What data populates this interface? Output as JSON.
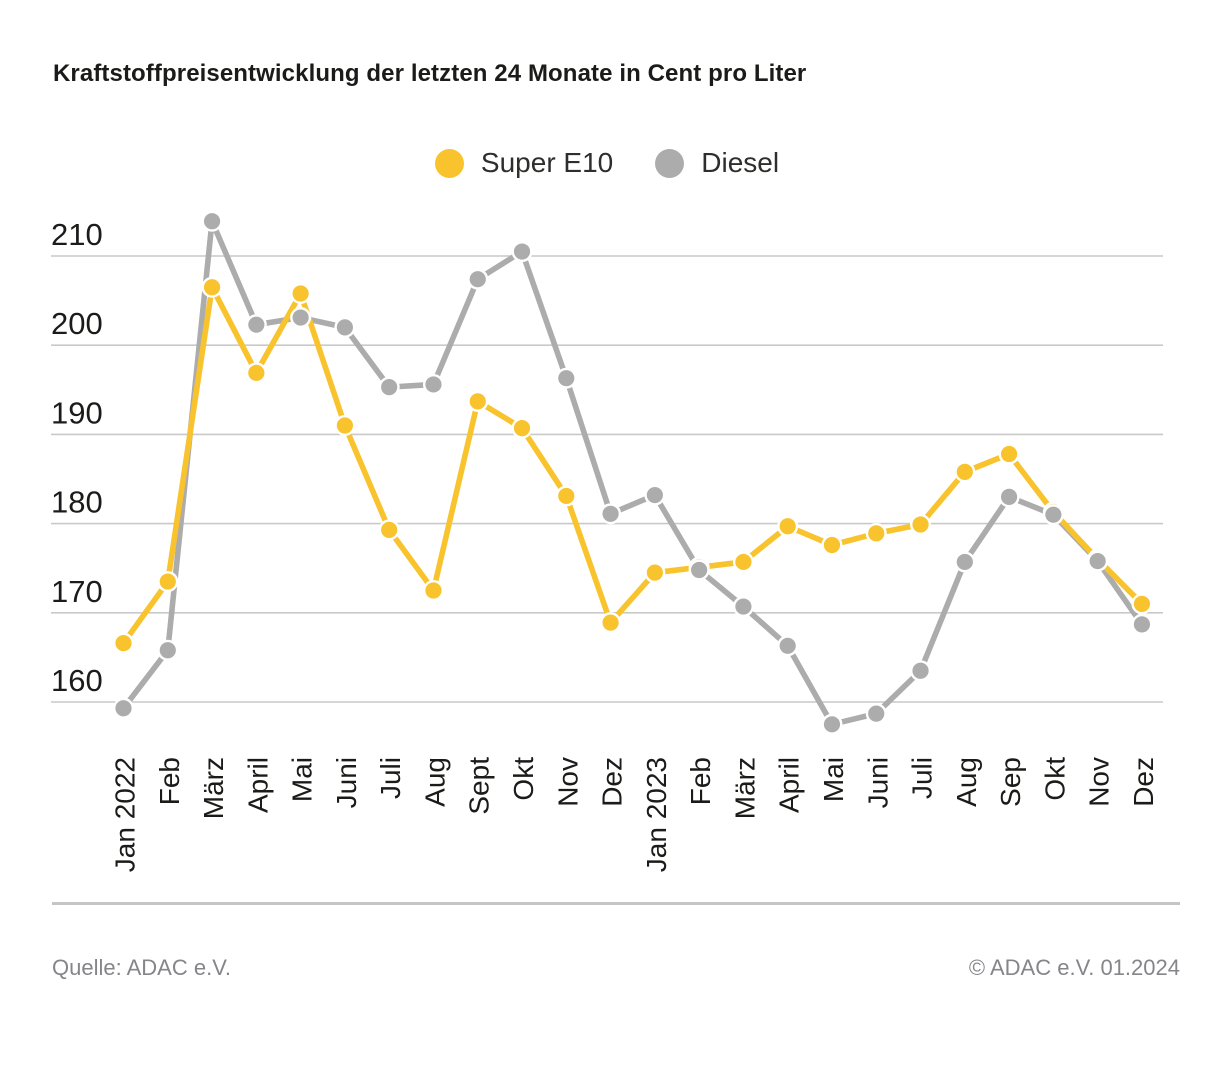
{
  "title": "Kraftstoffpreisentwicklung der letzten 24 Monate in Cent pro Liter",
  "legend": [
    {
      "label": "Super E10",
      "color": "#F8C32C"
    },
    {
      "label": "Diesel",
      "color": "#ACACAC"
    }
  ],
  "footer": {
    "source": "Quelle: ADAC e.V.",
    "copyright": "© ADAC e.V. 01.2024"
  },
  "colors": {
    "grid": "#C9C9C9",
    "axis_text": "#1B1B19",
    "background": "#FFFFFF"
  },
  "chart_data": {
    "type": "line",
    "title": "Kraftstoffpreisentwicklung der letzten 24 Monate in Cent pro Liter",
    "xlabel": "",
    "ylabel": "Cent pro Liter",
    "categories": [
      "Jan 2022",
      "Feb",
      "März",
      "April",
      "Mai",
      "Juni",
      "Juli",
      "Aug",
      "Sept",
      "Okt",
      "Nov",
      "Dez",
      "Jan 2023",
      "Feb",
      "März",
      "April",
      "Mai",
      "Juni",
      "Juli",
      "Aug",
      "Sep",
      "Okt",
      "Nov",
      "Dez"
    ],
    "series": [
      {
        "name": "Super E10",
        "color": "#F8C32C",
        "values": [
          166.6,
          173.5,
          206.5,
          196.9,
          205.8,
          191.0,
          179.3,
          172.5,
          193.7,
          190.7,
          183.1,
          168.9,
          174.5,
          175.1,
          175.7,
          179.7,
          177.6,
          178.9,
          179.9,
          185.8,
          187.8,
          181.3,
          176.0,
          171.0
        ]
      },
      {
        "name": "Diesel",
        "color": "#ACACAC",
        "values": [
          159.3,
          165.8,
          213.9,
          202.3,
          203.1,
          202.0,
          195.3,
          195.6,
          207.4,
          210.5,
          196.3,
          181.1,
          183.2,
          174.8,
          170.7,
          166.3,
          157.5,
          158.7,
          163.5,
          175.7,
          183.0,
          181.0,
          175.8,
          168.7
        ]
      }
    ],
    "yticks": [
      160,
      170,
      180,
      190,
      200,
      210
    ],
    "ylim": [
      155,
      215
    ],
    "grid": true,
    "legend_position": "top-center"
  }
}
